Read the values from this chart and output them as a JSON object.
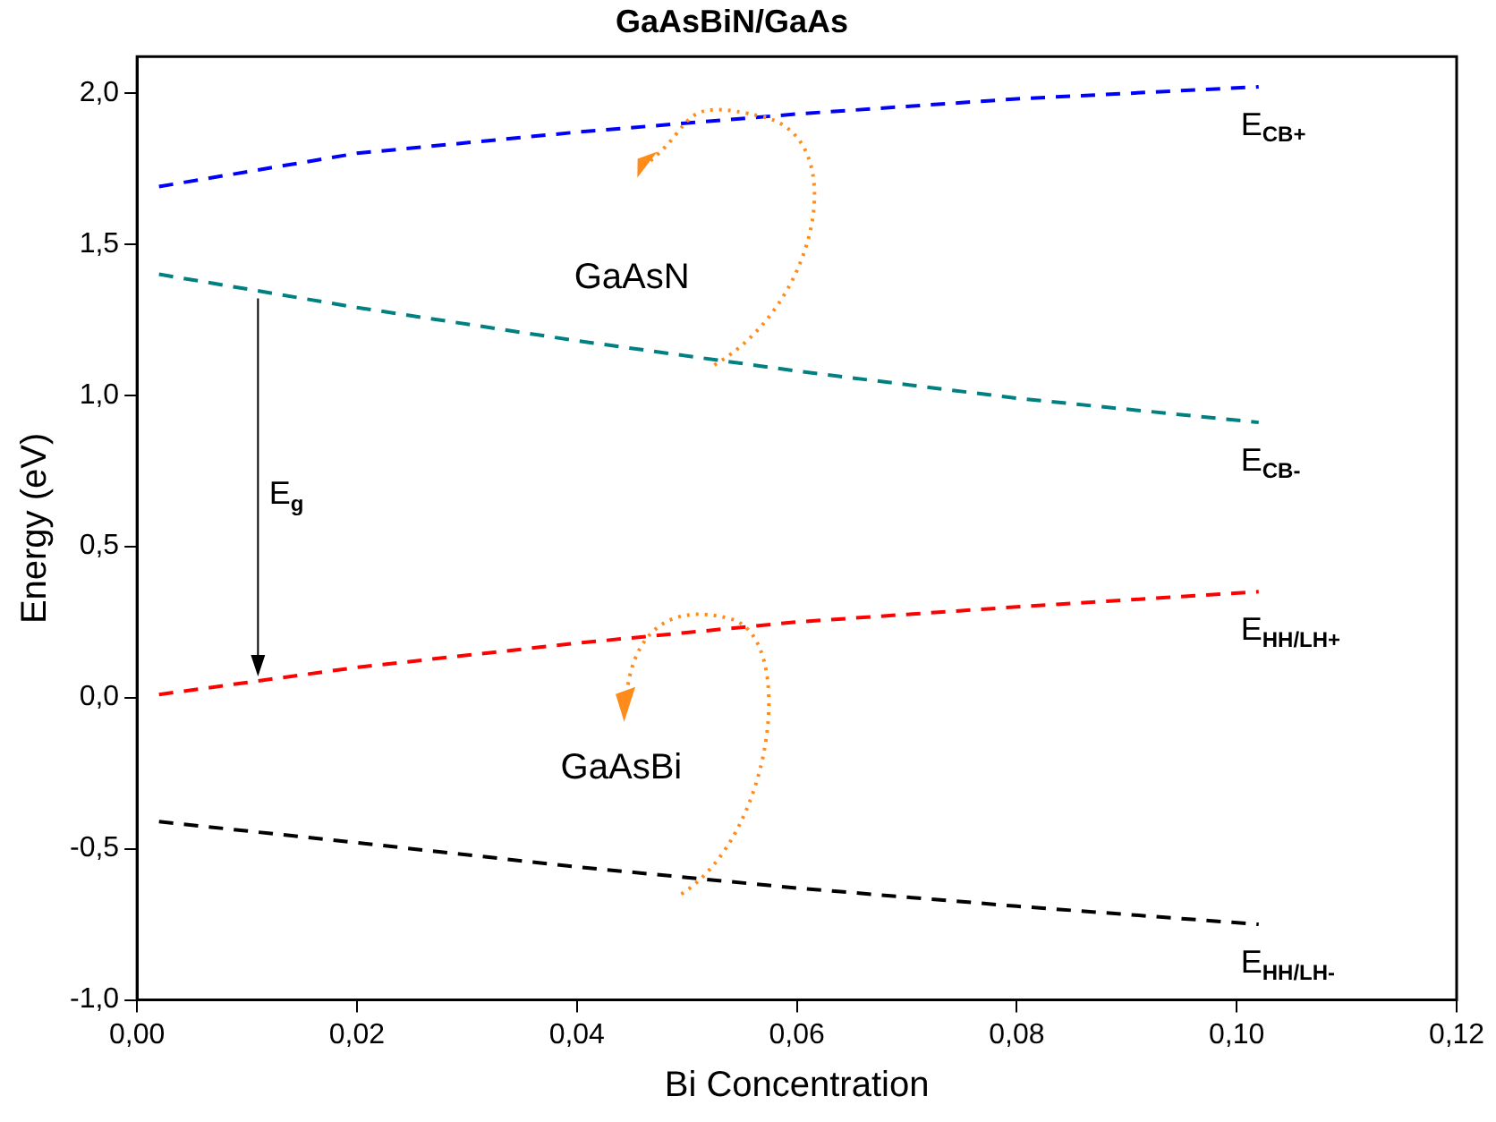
{
  "chart_data": {
    "type": "line",
    "title": "GaAsBiN/GaAs",
    "xlabel": "Bi Concentration",
    "ylabel": "Energy (eV)",
    "x": [
      0.002,
      0.02,
      0.04,
      0.06,
      0.08,
      0.102
    ],
    "series": [
      {
        "name": "E$_{CB+}$",
        "color": "#0000ff",
        "values": [
          1.69,
          1.8,
          1.87,
          1.93,
          1.98,
          2.02
        ]
      },
      {
        "name": "E$_{CB-}$",
        "color": "#008080",
        "values": [
          1.4,
          1.29,
          1.18,
          1.08,
          0.99,
          0.91
        ]
      },
      {
        "name": "E$_{HH/LH+}$",
        "color": "#ff0000",
        "values": [
          0.01,
          0.1,
          0.18,
          0.25,
          0.3,
          0.35
        ]
      },
      {
        "name": "E$_{HH/LH-}$",
        "color": "#000000",
        "values": [
          -0.41,
          -0.48,
          -0.56,
          -0.63,
          -0.69,
          -0.75
        ]
      }
    ],
    "annotations": [
      "GaAsN",
      "GaAsBi",
      "E$_{g}$"
    ],
    "xlim": [
      0,
      0.12
    ],
    "xticks": [
      {
        "value": 0,
        "label": "0,00"
      },
      {
        "value": 0.02,
        "label": "0,02"
      },
      {
        "value": 0.04,
        "label": "0,04"
      },
      {
        "value": 0.06,
        "label": "0,06"
      },
      {
        "value": 0.08,
        "label": "0,08"
      },
      {
        "value": 0.1,
        "label": "0,10"
      },
      {
        "value": 0.12,
        "label": "0,12"
      }
    ],
    "ylim": [
      -1,
      2.12
    ],
    "yticks": [
      {
        "value": -1,
        "label": "-1,0"
      },
      {
        "value": -0.5,
        "label": "-0,5"
      },
      {
        "value": 0,
        "label": "0,0"
      },
      {
        "value": 0.5,
        "label": "0,5"
      },
      {
        "value": 1,
        "label": "1,0"
      },
      {
        "value": 1.5,
        "label": "1,5"
      },
      {
        "value": 2,
        "label": "2,0"
      }
    ],
    "grid": false,
    "legend": false,
    "marker": "none",
    "line_style": "dashed"
  }
}
